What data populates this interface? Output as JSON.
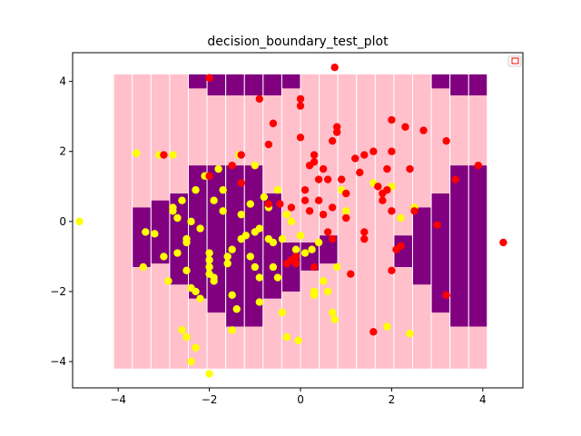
{
  "chart_data": {
    "type": "scatter",
    "title": "decision_boundary_test_plot",
    "xlabel": "",
    "ylabel": "",
    "xlim": [
      -5.0,
      4.88
    ],
    "ylim": [
      -4.75,
      4.82
    ],
    "x_ticks": [
      -4,
      -2,
      0,
      2,
      4
    ],
    "y_ticks": [
      -4,
      -2,
      0,
      2,
      4
    ],
    "grid": false,
    "legend": {
      "position": "upper right",
      "entries": [
        ""
      ]
    },
    "colors": {
      "background_region": "#ffc0cb",
      "predicted_region": "#800080",
      "class_0": "#ffff00",
      "class_1": "#ff0000"
    },
    "region_grid": {
      "x_start": -4.1,
      "column_width": 0.41,
      "y_bottom": -4.2,
      "y_top": 4.2,
      "columns": 20,
      "purple_intervals": [
        [],
        [
          [
            -1.3,
            0.4
          ]
        ],
        [
          [
            -1.2,
            0.6
          ]
        ],
        [
          [
            -1.8,
            0.8
          ]
        ],
        [
          [
            -2.2,
            1.6
          ],
          [
            3.8,
            4.2
          ]
        ],
        [
          [
            -2.6,
            1.6
          ],
          [
            3.6,
            4.2
          ]
        ],
        [
          [
            -3.0,
            1.6
          ],
          [
            3.6,
            4.2
          ]
        ],
        [
          [
            -3.0,
            1.6
          ],
          [
            3.6,
            4.2
          ]
        ],
        [
          [
            -2.2,
            0.8
          ],
          [
            3.6,
            4.2
          ]
        ],
        [
          [
            -2.0,
            -0.6
          ],
          [
            3.8,
            4.2
          ]
        ],
        [
          [
            -1.4,
            -0.6
          ]
        ],
        [
          [
            -1.2,
            -0.4
          ]
        ],
        [],
        [],
        [],
        [
          [
            -1.3,
            -0.4
          ]
        ],
        [
          [
            -1.8,
            0.4
          ]
        ],
        [
          [
            -2.6,
            0.8
          ],
          [
            3.8,
            4.2
          ]
        ],
        [
          [
            -3.0,
            1.6
          ],
          [
            3.6,
            4.2
          ]
        ],
        [
          [
            -3.0,
            1.6
          ],
          [
            3.6,
            4.2
          ]
        ]
      ]
    },
    "series": [
      {
        "name": "",
        "color": "#ffff00",
        "points": [
          [
            -4.85,
            0.0
          ],
          [
            -3.6,
            1.95
          ],
          [
            -3.4,
            -0.3
          ],
          [
            -3.2,
            -0.35
          ],
          [
            -3.45,
            -1.3
          ],
          [
            -3.0,
            -1.0
          ],
          [
            -2.9,
            -1.7
          ],
          [
            -2.8,
            0.3
          ],
          [
            -2.8,
            0.4
          ],
          [
            -2.7,
            0.1
          ],
          [
            -2.7,
            -0.9
          ],
          [
            -2.6,
            0.6
          ],
          [
            -2.5,
            -0.5
          ],
          [
            -2.5,
            -0.6
          ],
          [
            -2.6,
            -3.1
          ],
          [
            -2.5,
            -3.3
          ],
          [
            -2.4,
            -4.0
          ],
          [
            -2.3,
            -3.6
          ],
          [
            -2.4,
            0.0
          ],
          [
            -2.4,
            -1.9
          ],
          [
            -2.3,
            -2.0
          ],
          [
            -2.2,
            -2.2
          ],
          [
            -2.2,
            -0.2
          ],
          [
            -2.1,
            1.3
          ],
          [
            -2.0,
            -0.9
          ],
          [
            -2.0,
            -1.1
          ],
          [
            -2.0,
            -1.3
          ],
          [
            -2.0,
            -1.5
          ],
          [
            -1.9,
            -1.6
          ],
          [
            -1.9,
            -1.7
          ],
          [
            -1.9,
            0.6
          ],
          [
            -1.8,
            1.5
          ],
          [
            -1.7,
            0.9
          ],
          [
            -1.7,
            0.3
          ],
          [
            -1.6,
            -1.0
          ],
          [
            -1.6,
            -1.2
          ],
          [
            -1.5,
            -0.8
          ],
          [
            -1.5,
            -2.1
          ],
          [
            -1.4,
            -2.5
          ],
          [
            -1.5,
            -3.1
          ],
          [
            -1.3,
            0.2
          ],
          [
            -1.2,
            -0.4
          ],
          [
            -1.1,
            0.5
          ],
          [
            -1.1,
            -1.0
          ],
          [
            -1.0,
            -1.3
          ],
          [
            -0.9,
            -1.6
          ],
          [
            -0.9,
            -2.3
          ],
          [
            -0.8,
            0.7
          ],
          [
            -0.7,
            0.4
          ],
          [
            -0.7,
            -0.5
          ],
          [
            -0.6,
            -0.6
          ],
          [
            -0.6,
            -1.3
          ],
          [
            -0.5,
            -1.6
          ],
          [
            -0.5,
            0.9
          ],
          [
            -0.4,
            -2.6
          ],
          [
            -0.3,
            -3.3
          ],
          [
            -0.3,
            0.2
          ],
          [
            -0.2,
            0.0
          ],
          [
            -0.1,
            -0.8
          ],
          [
            -0.05,
            -3.4
          ],
          [
            0.1,
            -0.9
          ],
          [
            0.3,
            -2.0
          ],
          [
            0.3,
            -2.1
          ],
          [
            0.4,
            -0.6
          ],
          [
            0.5,
            -1.7
          ],
          [
            0.6,
            -2.0
          ],
          [
            0.7,
            -2.6
          ],
          [
            0.75,
            -2.8
          ],
          [
            0.8,
            -1.3
          ],
          [
            0.9,
            0.9
          ],
          [
            1.0,
            0.3
          ],
          [
            1.6,
            1.1
          ],
          [
            1.9,
            -3.0
          ],
          [
            2.0,
            1.0
          ],
          [
            2.2,
            0.1
          ],
          [
            2.4,
            -3.2
          ],
          [
            2.5,
            0.4
          ],
          [
            -2.0,
            -4.35
          ],
          [
            -1.35,
            1.9
          ],
          [
            -1.0,
            1.6
          ],
          [
            -2.3,
            0.9
          ],
          [
            -3.1,
            1.9
          ],
          [
            -2.8,
            1.9
          ],
          [
            -1.3,
            -0.5
          ],
          [
            -0.9,
            -0.2
          ],
          [
            -2.5,
            -1.4
          ],
          [
            -1.0,
            -0.3
          ],
          [
            -0.4,
            -0.5
          ],
          [
            0.0,
            -0.4
          ],
          [
            0.25,
            -0.8
          ]
        ]
      },
      {
        "name": "",
        "color": "#ff0000",
        "points": [
          [
            -2.0,
            4.1
          ],
          [
            0.75,
            4.4
          ],
          [
            -3.0,
            1.9
          ],
          [
            -1.3,
            1.9
          ],
          [
            -1.5,
            1.6
          ],
          [
            -2.0,
            1.3
          ],
          [
            -1.3,
            1.1
          ],
          [
            -0.9,
            3.5
          ],
          [
            -0.6,
            2.8
          ],
          [
            -0.7,
            2.2
          ],
          [
            -0.7,
            0.5
          ],
          [
            -0.45,
            0.5
          ],
          [
            -0.2,
            0.4
          ],
          [
            -0.3,
            -1.2
          ],
          [
            -0.2,
            -1.1
          ],
          [
            -0.1,
            -1.2
          ],
          [
            0.0,
            3.5
          ],
          [
            0.0,
            3.3
          ],
          [
            0.0,
            2.4
          ],
          [
            0.1,
            0.9
          ],
          [
            0.1,
            0.6
          ],
          [
            0.2,
            0.3
          ],
          [
            0.2,
            1.6
          ],
          [
            0.3,
            1.9
          ],
          [
            0.3,
            1.7
          ],
          [
            0.4,
            1.2
          ],
          [
            0.4,
            0.6
          ],
          [
            0.5,
            1.5
          ],
          [
            0.6,
            1.2
          ],
          [
            0.6,
            -0.3
          ],
          [
            0.7,
            -0.5
          ],
          [
            0.7,
            0.4
          ],
          [
            0.8,
            2.7
          ],
          [
            0.8,
            2.55
          ],
          [
            0.7,
            2.3
          ],
          [
            0.9,
            1.2
          ],
          [
            1.0,
            0.8
          ],
          [
            1.0,
            0.1
          ],
          [
            1.1,
            -1.5
          ],
          [
            1.2,
            1.8
          ],
          [
            1.3,
            1.4
          ],
          [
            1.4,
            1.9
          ],
          [
            1.4,
            -0.3
          ],
          [
            1.4,
            -0.5
          ],
          [
            1.6,
            2.0
          ],
          [
            1.7,
            1.0
          ],
          [
            1.8,
            0.8
          ],
          [
            1.8,
            0.6
          ],
          [
            1.9,
            1.5
          ],
          [
            2.0,
            2.0
          ],
          [
            2.0,
            2.9
          ],
          [
            2.0,
            0.3
          ],
          [
            2.1,
            -0.8
          ],
          [
            2.2,
            -0.7
          ],
          [
            2.3,
            2.7
          ],
          [
            2.4,
            1.5
          ],
          [
            2.5,
            0.3
          ],
          [
            2.7,
            2.6
          ],
          [
            3.0,
            -0.1
          ],
          [
            3.2,
            2.3
          ],
          [
            3.2,
            -2.1
          ],
          [
            3.4,
            1.2
          ],
          [
            3.9,
            1.6
          ],
          [
            4.45,
            -0.6
          ],
          [
            1.6,
            -3.15
          ],
          [
            2.0,
            -1.4
          ],
          [
            1.9,
            0.9
          ],
          [
            0.5,
            0.2
          ],
          [
            -0.1,
            -1.0
          ],
          [
            0.3,
            -1.3
          ]
        ]
      }
    ]
  }
}
